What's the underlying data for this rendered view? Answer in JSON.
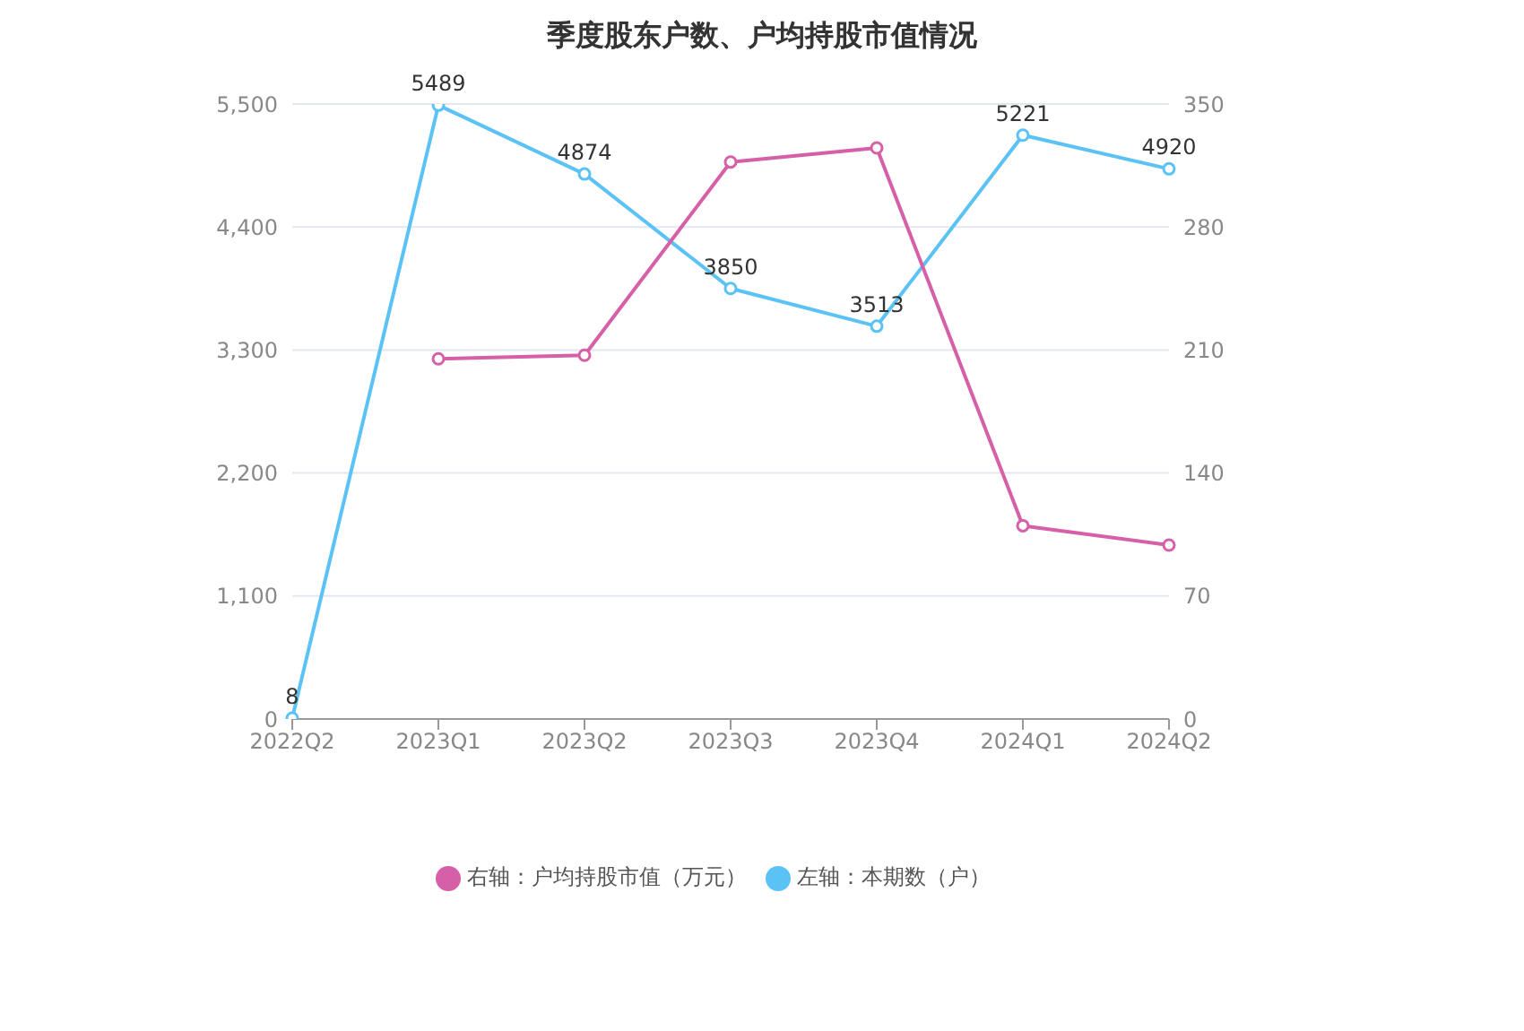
{
  "chart_data": {
    "type": "line",
    "title": "季度股东户数、户均持股市值情况",
    "categories": [
      "2022Q2",
      "2023Q1",
      "2023Q2",
      "2023Q3",
      "2023Q4",
      "2024Q1",
      "2024Q2"
    ],
    "series": [
      {
        "name": "左轴：本期数（户）",
        "color": "#5bc2f5",
        "values": [
          8,
          5489,
          4874,
          3850,
          3513,
          5221,
          4920
        ],
        "value_labels": [
          "8",
          "5489",
          "4874",
          "3850",
          "3513",
          "5221",
          "4920"
        ]
      },
      {
        "name": "右轴：户均持股市值（万元）",
        "color": "#d660a8",
        "axis": "y2",
        "values": [
          null,
          205,
          207,
          317,
          325,
          110,
          99
        ]
      }
    ],
    "ylim": [
      0,
      5500
    ],
    "yticks": [
      0,
      {
        "value": 1100,
        "label": "1,100"
      },
      {
        "value": 2200,
        "label": "2,200"
      },
      {
        "value": 3300,
        "label": "3,300"
      },
      {
        "value": 4400,
        "label": "4,400"
      },
      {
        "value": 5500,
        "label": "5,500"
      }
    ],
    "y2lim": [
      0,
      350
    ],
    "y2ticks": [
      0,
      70,
      140,
      210,
      280,
      350
    ],
    "grid": "y",
    "legend": "bottom",
    "marker": "circle",
    "line_style": "solid"
  }
}
